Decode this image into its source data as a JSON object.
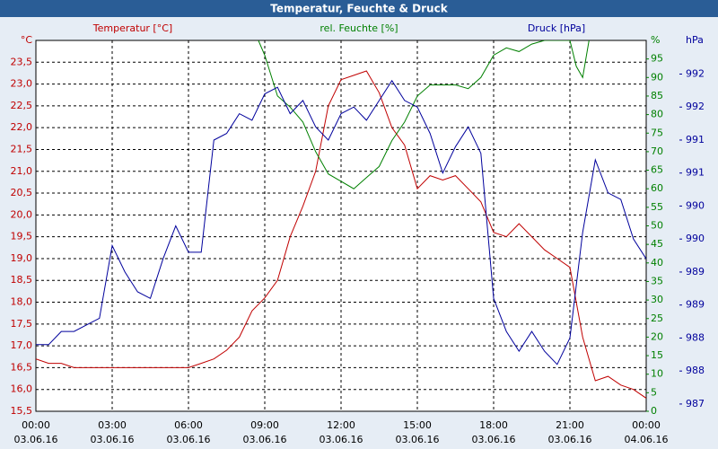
{
  "chart_data": {
    "type": "line",
    "title": "Temperatur, Feuchte & Druck",
    "xlim": [
      0,
      24
    ],
    "xticks": [
      {
        "value": 0,
        "label": "00:00"
      },
      {
        "value": 3,
        "label": "03:00"
      },
      {
        "value": 6,
        "label": "06:00"
      },
      {
        "value": 9,
        "label": "09:00"
      },
      {
        "value": 12,
        "label": "12:00"
      },
      {
        "value": 15,
        "label": "15:00"
      },
      {
        "value": 18,
        "label": "18:00"
      },
      {
        "value": 21,
        "label": "21:00"
      },
      {
        "value": 24,
        "label": "00:00"
      }
    ],
    "xtick_dates": [
      "03.06.16",
      "03.06.16",
      "03.06.16",
      "03.06.16",
      "03.06.16",
      "03.06.16",
      "03.06.16",
      "03.06.16",
      "04.06.16"
    ],
    "grid": true,
    "axes": [
      {
        "id": "y",
        "title": "Temperatur [°C]",
        "unit": "°C",
        "color": "#c00000",
        "lim": [
          15.5,
          24.0
        ],
        "ticks": [
          {
            "value": 15.5,
            "label": "15,5"
          },
          {
            "value": 16.0,
            "label": "16,0"
          },
          {
            "value": 16.5,
            "label": "16,5"
          },
          {
            "value": 17.0,
            "label": "17,0"
          },
          {
            "value": 17.5,
            "label": "17,5"
          },
          {
            "value": 18.0,
            "label": "18,0"
          },
          {
            "value": 18.5,
            "label": "18,5"
          },
          {
            "value": 19.0,
            "label": "19,0"
          },
          {
            "value": 19.5,
            "label": "19,5"
          },
          {
            "value": 20.0,
            "label": "20,0"
          },
          {
            "value": 20.5,
            "label": "20,5"
          },
          {
            "value": 21.0,
            "label": "21,0"
          },
          {
            "value": 21.5,
            "label": "21,5"
          },
          {
            "value": 22.0,
            "label": "22,0"
          },
          {
            "value": 22.5,
            "label": "22,5"
          },
          {
            "value": 23.0,
            "label": "23,0"
          },
          {
            "value": 23.5,
            "label": "23,5"
          }
        ]
      },
      {
        "id": "y2",
        "title": "rel. Feuchte [%]",
        "unit": "%",
        "color": "#008000",
        "lim": [
          0,
          100
        ],
        "ticks": [
          0,
          5,
          10,
          15,
          20,
          25,
          30,
          35,
          40,
          45,
          50,
          55,
          60,
          65,
          70,
          75,
          80,
          85,
          90,
          95
        ]
      },
      {
        "id": "y3",
        "title": "Druck [hPa]",
        "unit": "hPa",
        "color": "#00009c",
        "lim": [
          986.89,
          992.51
        ],
        "ticks": [
          {
            "value": 987.0,
            "label": "987"
          },
          {
            "value": 987.5,
            "label": "988"
          },
          {
            "value": 988.0,
            "label": "988"
          },
          {
            "value": 988.5,
            "label": "989"
          },
          {
            "value": 989.0,
            "label": "989"
          },
          {
            "value": 989.5,
            "label": "990"
          },
          {
            "value": 990.0,
            "label": "990"
          },
          {
            "value": 990.5,
            "label": "991"
          },
          {
            "value": 991.0,
            "label": "991"
          },
          {
            "value": 991.5,
            "label": "992"
          },
          {
            "value": 992.0,
            "label": "992"
          }
        ]
      }
    ],
    "series": [
      {
        "name": "Temperatur",
        "axis": "y",
        "color": "#c00000",
        "x": [
          0,
          0.5,
          1,
          1.5,
          2,
          2.5,
          3,
          3.5,
          4,
          4.5,
          5,
          5.5,
          6,
          6.5,
          7,
          7.5,
          8,
          8.5,
          9,
          9.5,
          10,
          10.5,
          11,
          11.5,
          12,
          12.5,
          13,
          13.5,
          14,
          14.5,
          15,
          15.5,
          16,
          16.5,
          17,
          17.5,
          18,
          18.5,
          19,
          19.5,
          20,
          20.5,
          21,
          21.5,
          22,
          22.5,
          23,
          23.5,
          24
        ],
        "values": [
          16.7,
          16.6,
          16.6,
          16.5,
          16.5,
          16.5,
          16.5,
          16.5,
          16.5,
          16.5,
          16.5,
          16.5,
          16.5,
          16.6,
          16.7,
          16.9,
          17.2,
          17.8,
          18.1,
          18.5,
          19.5,
          20.2,
          21.0,
          22.5,
          23.1,
          23.2,
          23.3,
          22.8,
          22.0,
          21.6,
          20.6,
          20.9,
          20.8,
          20.9,
          20.6,
          20.3,
          19.6,
          19.5,
          19.8,
          19.5,
          19.2,
          19.0,
          18.8,
          17.2,
          16.2,
          16.3,
          16.1,
          16.0,
          15.8
        ]
      },
      {
        "name": "rel. Feuchte",
        "axis": "y2",
        "color": "#008000",
        "x": [
          8.75,
          9,
          9.5,
          10,
          10.5,
          11,
          11.5,
          12,
          12.5,
          13,
          13.5,
          14,
          14.5,
          15,
          15.5,
          16,
          16.5,
          17,
          17.5,
          18,
          18.5,
          19,
          19.5,
          20,
          21,
          21.25,
          21.5,
          21.75
        ],
        "values": [
          100,
          96,
          85,
          82,
          78,
          70,
          64,
          62,
          60,
          63,
          66,
          73,
          78,
          85,
          88,
          88,
          88,
          87,
          90,
          96,
          98,
          97,
          99,
          100,
          100,
          93,
          90,
          100
        ]
      },
      {
        "name": "Druck",
        "axis": "y3",
        "color": "#00009c",
        "x": [
          0,
          0.5,
          1,
          1.5,
          2,
          2.5,
          3,
          3.5,
          4,
          4.5,
          5,
          5.5,
          6,
          6.5,
          7,
          7.5,
          8,
          8.5,
          9,
          9.5,
          10,
          10.5,
          11,
          11.5,
          12,
          12.5,
          13,
          13.5,
          14,
          14.5,
          15,
          15.5,
          16,
          16.5,
          17,
          17.5,
          18,
          18.5,
          19,
          19.5,
          20,
          20.5,
          21,
          21.5,
          22,
          22.5,
          23,
          23.5,
          24
        ],
        "values": [
          987.9,
          987.9,
          988.1,
          988.1,
          988.2,
          988.3,
          989.4,
          989.0,
          988.7,
          988.6,
          989.2,
          989.7,
          989.3,
          989.3,
          991.0,
          991.1,
          991.4,
          991.3,
          991.7,
          991.8,
          991.4,
          991.6,
          991.2,
          991.0,
          991.4,
          991.5,
          991.3,
          991.6,
          991.9,
          991.6,
          991.5,
          991.1,
          990.5,
          990.9,
          991.2,
          990.8,
          988.6,
          988.1,
          987.8,
          988.1,
          987.8,
          987.6,
          988.0,
          989.6,
          990.7,
          990.2,
          990.1,
          989.5,
          989.2
        ]
      }
    ]
  }
}
